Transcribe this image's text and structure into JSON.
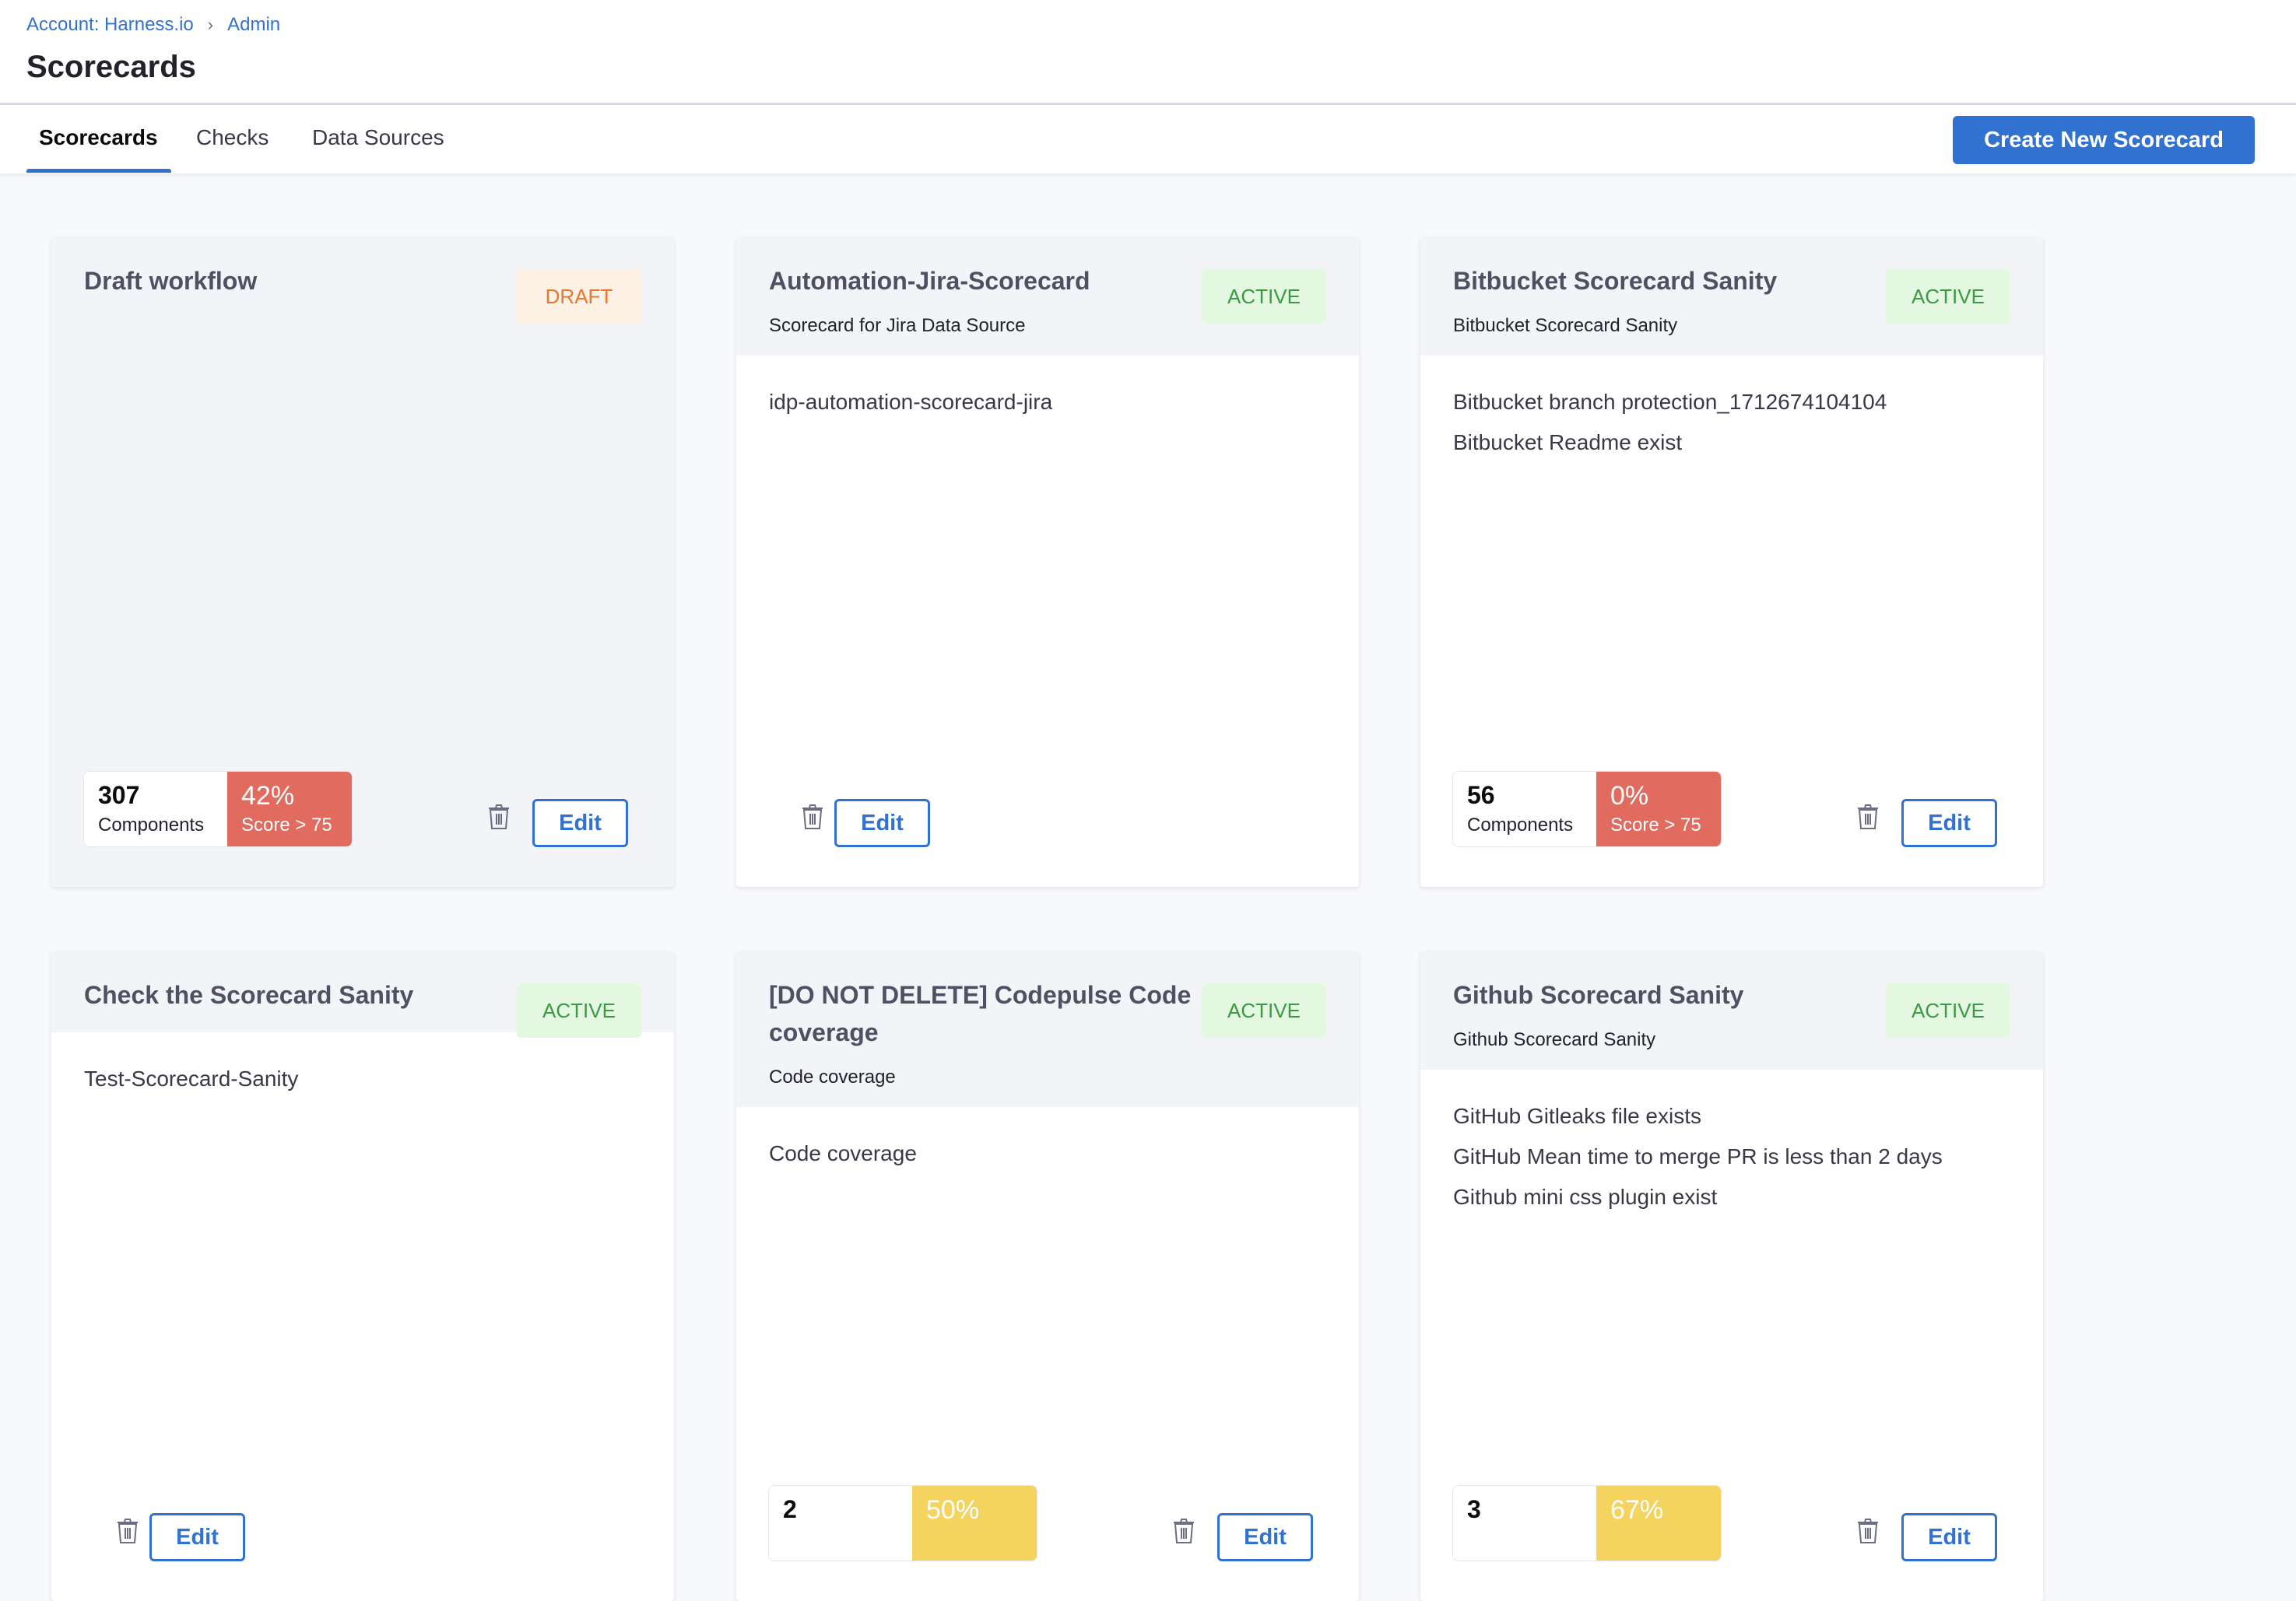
{
  "breadcrumb": {
    "account": "Account: Harness.io",
    "admin": "Admin"
  },
  "page_title": "Scorecards",
  "tabs": [
    {
      "label": "Scorecards"
    },
    {
      "label": "Checks"
    },
    {
      "label": "Data Sources"
    }
  ],
  "create_button": "Create New Scorecard",
  "edit_label": "Edit",
  "colors": {
    "accent": "#3171d0",
    "score_low": "#e06b5e",
    "score_mid": "#f5d35f",
    "active_bg": "#e4f7e1",
    "draft_bg": "#fdf1e6"
  },
  "cards": [
    {
      "title": "Draft workflow",
      "status": "DRAFT",
      "description": "",
      "checks": [],
      "components": "307",
      "components_label": "Components",
      "score": "42%",
      "score_label": "Score > 75",
      "score_color": "#e06b5e"
    },
    {
      "title": "Automation-Jira-Scorecard",
      "status": "ACTIVE",
      "description": "Scorecard for Jira Data Source",
      "checks": [
        "idp-automation-scorecard-jira"
      ]
    },
    {
      "title": "Bitbucket Scorecard Sanity",
      "status": "ACTIVE",
      "description": "Bitbucket Scorecard Sanity",
      "checks": [
        "Bitbucket branch protection_1712674104104",
        "Bitbucket Readme exist"
      ],
      "components": "56",
      "components_label": "Components",
      "score": "0%",
      "score_label": "Score > 75",
      "score_color": "#e06b5e"
    },
    {
      "title": "Check the Scorecard Sanity",
      "status": "ACTIVE",
      "description": "",
      "checks": [
        "Test-Scorecard-Sanity"
      ]
    },
    {
      "title": "[DO NOT DELETE] Codepulse Code coverage",
      "status": "ACTIVE",
      "description": "Code coverage",
      "checks": [
        "Code coverage"
      ],
      "components": "2",
      "score": "50%",
      "score_color": "#f5d35f"
    },
    {
      "title": "Github Scorecard Sanity",
      "status": "ACTIVE",
      "description": "Github Scorecard Sanity",
      "checks": [
        "GitHub Gitleaks file exists",
        "GitHub Mean time to merge PR is less than 2 days",
        "Github mini css plugin exist"
      ],
      "components": "3",
      "score": "67%",
      "score_color": "#f5d35f"
    }
  ]
}
